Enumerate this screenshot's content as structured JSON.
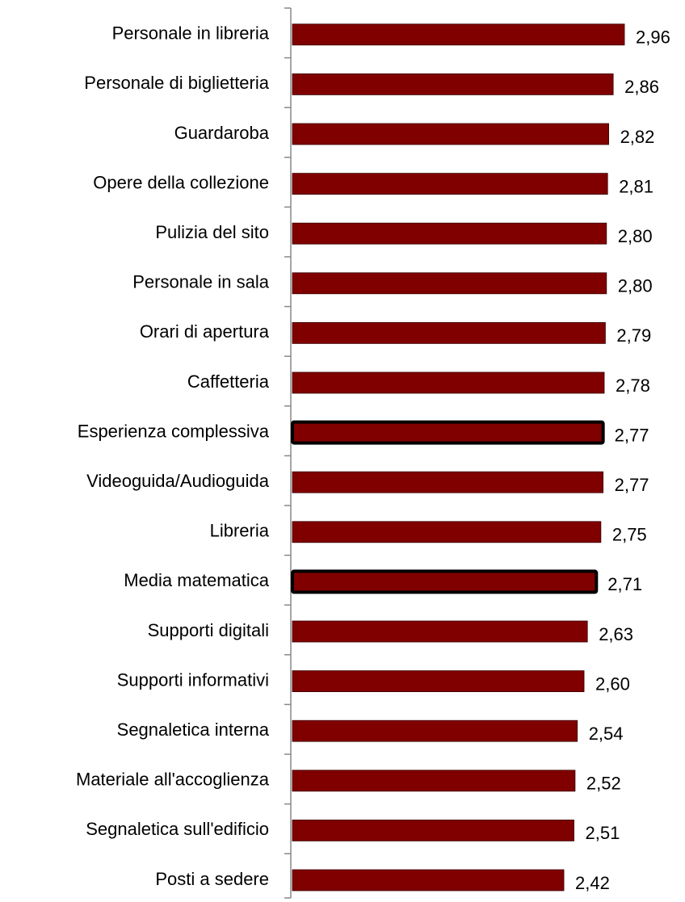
{
  "chart_data": {
    "type": "barh",
    "categories": [
      "Personale in libreria",
      "Personale di biglietteria",
      "Guardaroba",
      "Opere della collezione",
      "Pulizia del sito",
      "Personale in sala",
      "Orari di apertura",
      "Caffetteria",
      "Esperienza complessiva",
      "Videoguida/Audioguida",
      "Libreria",
      "Media matematica",
      "Supporti digitali",
      "Supporti informativi",
      "Segnaletica interna",
      "Materiale all'accoglienza",
      "Segnaletica sull'edificio",
      "Posti a sedere"
    ],
    "values": [
      2.96,
      2.86,
      2.82,
      2.81,
      2.8,
      2.8,
      2.79,
      2.78,
      2.77,
      2.77,
      2.75,
      2.71,
      2.63,
      2.6,
      2.54,
      2.52,
      2.51,
      2.42
    ],
    "value_labels": [
      "2,96",
      "2,86",
      "2,82",
      "2,81",
      "2,80",
      "2,80",
      "2,79",
      "2,78",
      "2,77",
      "2,77",
      "2,75",
      "2,71",
      "2,63",
      "2,60",
      "2,54",
      "2,52",
      "2,51",
      "2,42"
    ],
    "color": "#800000",
    "highlight_indices": [
      8,
      11
    ],
    "xlim": [
      0,
      3.5
    ]
  }
}
